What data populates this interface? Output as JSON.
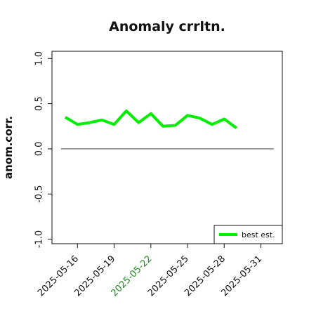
{
  "chart_data": {
    "type": "line",
    "title": "Anomaly crrltn.",
    "xlabel": "",
    "ylabel": "anom.corr.",
    "x_ticks": [
      "2025-05-16",
      "2025-05-19",
      "2025-05-22",
      "2025-05-25",
      "2025-05-28",
      "2025-05-31"
    ],
    "x_tick_colors": [
      "#111111",
      "#111111",
      "#228B22",
      "#111111",
      "#111111",
      "#111111"
    ],
    "y_ticks": [
      "-1.0",
      "-0.5",
      "0.0",
      "0.5",
      "1.0"
    ],
    "y_tick_values": [
      -1.0,
      -0.5,
      0.0,
      0.5,
      1.0
    ],
    "ylim": [
      -1.05,
      1.08
    ],
    "xlim": [
      "2025-05-13T22:00",
      "2025-06-01T18:00"
    ],
    "reference_line": 0.0,
    "reference_line_color": "#555555",
    "grid": false,
    "legend_position": "bottom-right",
    "series": [
      {
        "name": "best est.",
        "color": "#00ee00",
        "points": [
          {
            "x": "2025-05-15",
            "y": 0.35
          },
          {
            "x": "2025-05-16",
            "y": 0.27
          },
          {
            "x": "2025-05-17",
            "y": 0.29
          },
          {
            "x": "2025-05-18",
            "y": 0.32
          },
          {
            "x": "2025-05-19",
            "y": 0.27
          },
          {
            "x": "2025-05-20",
            "y": 0.42
          },
          {
            "x": "2025-05-21",
            "y": 0.29
          },
          {
            "x": "2025-05-22",
            "y": 0.39
          },
          {
            "x": "2025-05-23",
            "y": 0.25
          },
          {
            "x": "2025-05-24",
            "y": 0.26
          },
          {
            "x": "2025-05-25",
            "y": 0.37
          },
          {
            "x": "2025-05-26",
            "y": 0.34
          },
          {
            "x": "2025-05-27",
            "y": 0.27
          },
          {
            "x": "2025-05-28",
            "y": 0.33
          },
          {
            "x": "2025-05-29",
            "y": 0.23
          }
        ]
      }
    ]
  }
}
